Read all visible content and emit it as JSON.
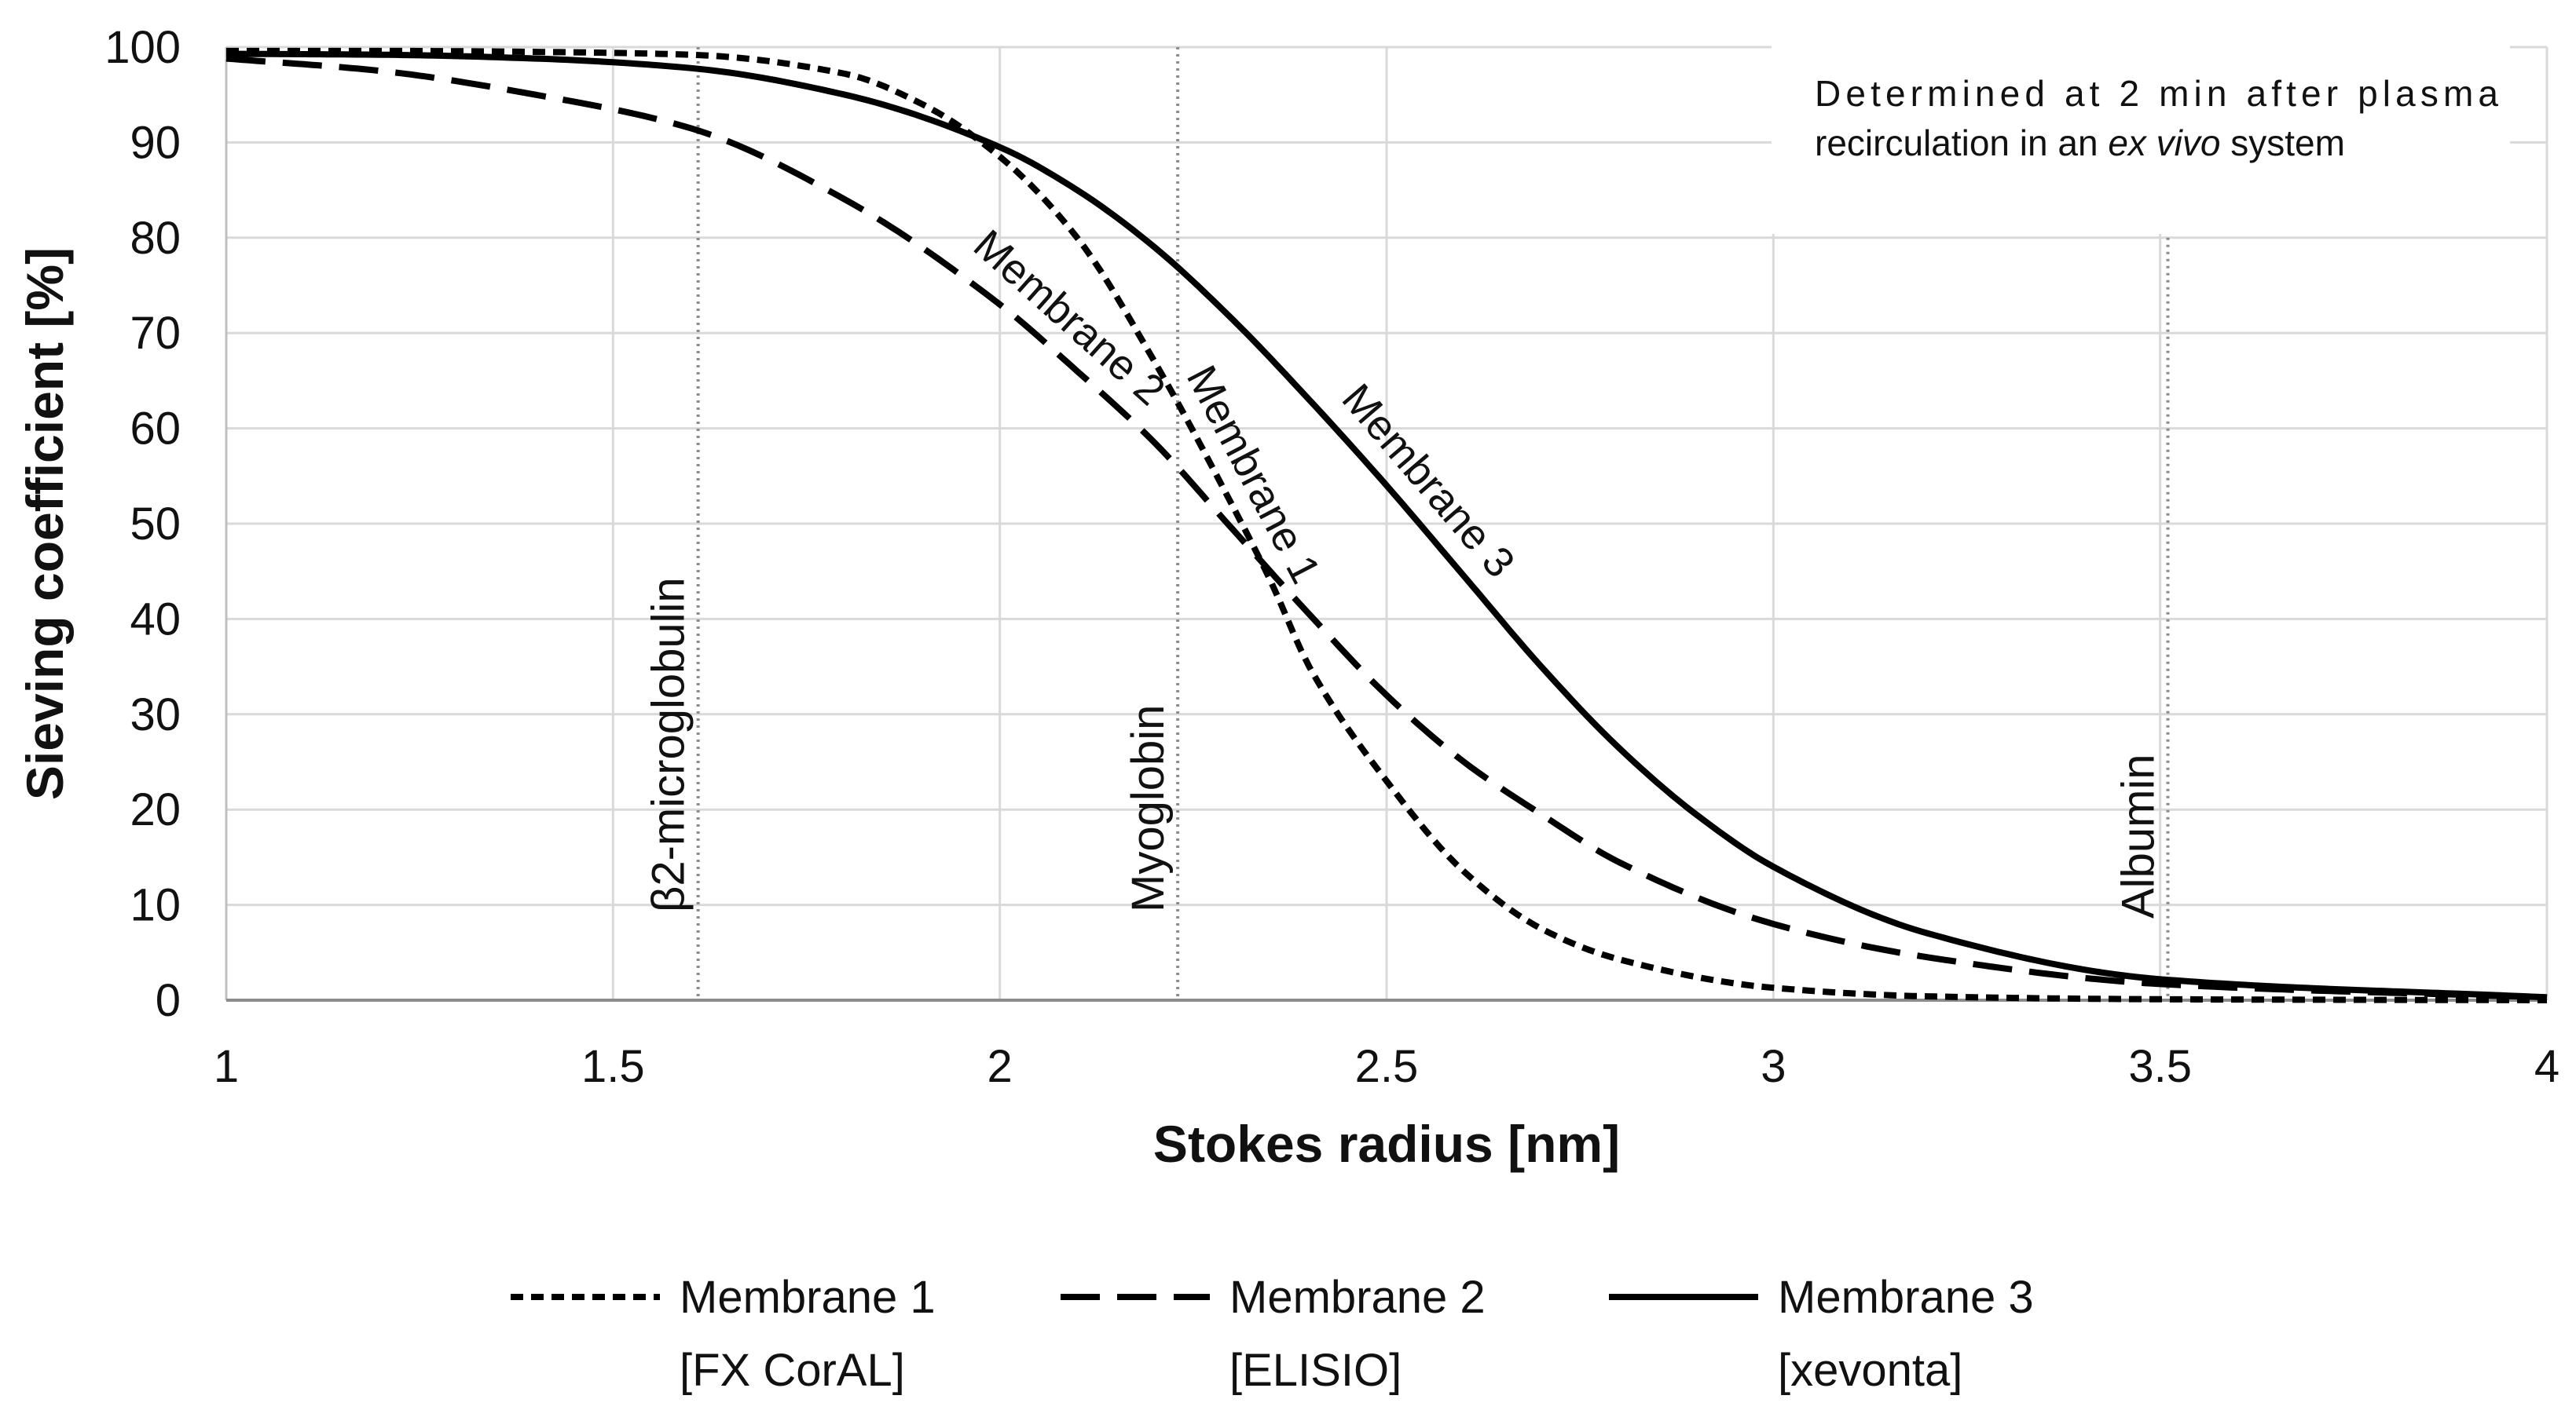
{
  "chart_data": {
    "type": "line",
    "title": "",
    "xlabel": "Stokes radius [nm]",
    "ylabel": "Sieving coefficient [%]",
    "xlim": [
      1,
      4
    ],
    "ylim": [
      0,
      100
    ],
    "x_ticks": [
      "1",
      "1.5",
      "2",
      "2.5",
      "3",
      "3.5",
      "4"
    ],
    "y_ticks": [
      "0",
      "10",
      "20",
      "30",
      "40",
      "50",
      "60",
      "70",
      "80",
      "90",
      "100"
    ],
    "grid": true,
    "annotation": {
      "line1": "Determined at 2 min after plasma",
      "line2_pre": "recirculation in an ",
      "line2_italic": "ex vivo",
      "line2_post": " system"
    },
    "markers": [
      {
        "label": "β2-microglobulin",
        "x": 1.61
      },
      {
        "label": "Myoglobin",
        "x": 2.23
      },
      {
        "label": "Albumin",
        "x": 3.51
      }
    ],
    "series": [
      {
        "name": "Membrane 1",
        "device": "[FX CorAL]",
        "style": "short-dash",
        "x": [
          1.0,
          1.2,
          1.4,
          1.6,
          1.8,
          1.9,
          2.0,
          2.1,
          2.2,
          2.3,
          2.35,
          2.4,
          2.5,
          2.6,
          2.7,
          2.8,
          3.0,
          3.2,
          3.5,
          4.0
        ],
        "values": [
          99.6,
          99.6,
          99.5,
          99.2,
          97.2,
          94.0,
          88.5,
          80.0,
          67.0,
          52.0,
          44.0,
          35.0,
          23.0,
          13.5,
          7.5,
          4.3,
          1.3,
          0.4,
          0.1,
          0.0
        ]
      },
      {
        "name": "Membrane 2",
        "device": "[ELISIO]",
        "style": "long-dash",
        "x": [
          1.0,
          1.2,
          1.4,
          1.6,
          1.8,
          2.0,
          2.1,
          2.2,
          2.3,
          2.4,
          2.5,
          2.6,
          2.7,
          2.8,
          3.0,
          3.2,
          3.5,
          4.0
        ],
        "values": [
          98.8,
          97.5,
          95.0,
          91.5,
          84.0,
          73.0,
          66.0,
          58.5,
          49.5,
          40.5,
          32.0,
          25.0,
          19.5,
          14.5,
          8.0,
          4.5,
          1.7,
          0.3
        ]
      },
      {
        "name": "Membrane 3",
        "device": "[xevonta]",
        "style": "solid",
        "x": [
          1.0,
          1.2,
          1.4,
          1.6,
          1.8,
          2.0,
          2.1,
          2.2,
          2.3,
          2.4,
          2.5,
          2.6,
          2.7,
          2.8,
          2.9,
          3.0,
          3.2,
          3.5,
          4.0
        ],
        "values": [
          99.3,
          99.2,
          98.8,
          97.8,
          95.0,
          89.5,
          85.0,
          79.0,
          71.5,
          63.0,
          54.0,
          44.5,
          35.0,
          26.5,
          19.5,
          14.0,
          7.0,
          2.2,
          0.3
        ]
      }
    ],
    "curve_labels": [
      {
        "series": "Membrane 2",
        "text": "Membrane 2"
      },
      {
        "series": "Membrane 1",
        "text": "Membrane 1"
      },
      {
        "series": "Membrane 3",
        "text": "Membrane 3"
      }
    ]
  }
}
